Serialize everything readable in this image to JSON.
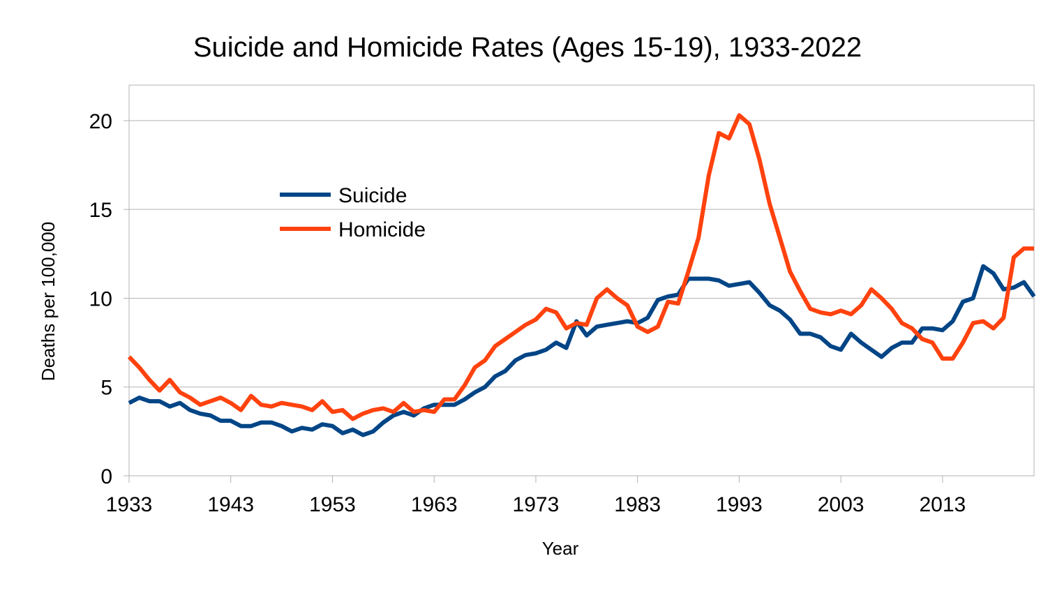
{
  "chart_data": {
    "type": "line",
    "title": "Suicide and Homicide Rates (Ages 15-19), 1933-2022",
    "xlabel": "Year",
    "ylabel": "Deaths per 100,000",
    "xlim": [
      1933,
      2022
    ],
    "ylim": [
      0,
      22
    ],
    "x_ticks": [
      1933,
      1943,
      1953,
      1963,
      1973,
      1983,
      1993,
      2003,
      2013
    ],
    "y_ticks": [
      0,
      5,
      10,
      15,
      20
    ],
    "grid": "horizontal",
    "legend_position": "upper-left, inside plot",
    "x": [
      1933,
      1934,
      1935,
      1936,
      1937,
      1938,
      1939,
      1940,
      1941,
      1942,
      1943,
      1944,
      1945,
      1946,
      1947,
      1948,
      1949,
      1950,
      1951,
      1952,
      1953,
      1954,
      1955,
      1956,
      1957,
      1958,
      1959,
      1960,
      1961,
      1962,
      1963,
      1964,
      1965,
      1966,
      1967,
      1968,
      1969,
      1970,
      1971,
      1972,
      1973,
      1974,
      1975,
      1976,
      1977,
      1978,
      1979,
      1980,
      1981,
      1982,
      1983,
      1984,
      1985,
      1986,
      1987,
      1988,
      1989,
      1990,
      1991,
      1992,
      1993,
      1994,
      1995,
      1996,
      1997,
      1998,
      1999,
      2000,
      2001,
      2002,
      2003,
      2004,
      2005,
      2006,
      2007,
      2008,
      2009,
      2010,
      2011,
      2012,
      2013,
      2014,
      2015,
      2016,
      2017,
      2018,
      2019,
      2020,
      2021,
      2022
    ],
    "series": [
      {
        "name": "Suicide",
        "color": "#004586",
        "values": [
          4.1,
          4.4,
          4.2,
          4.2,
          3.9,
          4.1,
          3.7,
          3.5,
          3.4,
          3.1,
          3.1,
          2.8,
          2.8,
          3.0,
          3.0,
          2.8,
          2.5,
          2.7,
          2.6,
          2.9,
          2.8,
          2.4,
          2.6,
          2.3,
          2.5,
          3.0,
          3.4,
          3.6,
          3.4,
          3.8,
          4.0,
          4.0,
          4.0,
          4.3,
          4.7,
          5.0,
          5.6,
          5.9,
          6.5,
          6.8,
          6.9,
          7.1,
          7.5,
          7.2,
          8.7,
          7.9,
          8.4,
          8.5,
          8.6,
          8.7,
          8.6,
          8.9,
          9.9,
          10.1,
          10.2,
          11.1,
          11.1,
          11.1,
          11.0,
          10.7,
          10.8,
          10.9,
          10.3,
          9.6,
          9.3,
          8.8,
          8.0,
          8.0,
          7.8,
          7.3,
          7.1,
          8.0,
          7.5,
          7.1,
          6.7,
          7.2,
          7.5,
          7.5,
          8.3,
          8.3,
          8.2,
          8.7,
          9.8,
          10.0,
          11.8,
          11.4,
          10.5,
          10.6,
          10.9,
          10.1
        ]
      },
      {
        "name": "Homicide",
        "color": "#ff420e",
        "values": [
          6.7,
          6.1,
          5.4,
          4.8,
          5.4,
          4.7,
          4.4,
          4.0,
          4.2,
          4.4,
          4.1,
          3.7,
          4.5,
          4.0,
          3.9,
          4.1,
          4.0,
          3.9,
          3.7,
          4.2,
          3.6,
          3.7,
          3.2,
          3.5,
          3.7,
          3.8,
          3.6,
          4.1,
          3.6,
          3.7,
          3.6,
          4.3,
          4.3,
          5.1,
          6.1,
          6.5,
          7.3,
          7.7,
          8.1,
          8.5,
          8.8,
          9.4,
          9.2,
          8.3,
          8.6,
          8.5,
          10.0,
          10.5,
          10.0,
          9.6,
          8.4,
          8.1,
          8.4,
          9.8,
          9.7,
          11.5,
          13.4,
          16.9,
          19.3,
          19.0,
          20.3,
          19.8,
          17.8,
          15.3,
          13.4,
          11.5,
          10.4,
          9.4,
          9.2,
          9.1,
          9.3,
          9.1,
          9.6,
          10.5,
          10.0,
          9.4,
          8.6,
          8.3,
          7.7,
          7.5,
          6.6,
          6.6,
          7.5,
          8.6,
          8.7,
          8.3,
          8.9,
          12.3,
          12.8,
          12.8
        ]
      }
    ]
  }
}
